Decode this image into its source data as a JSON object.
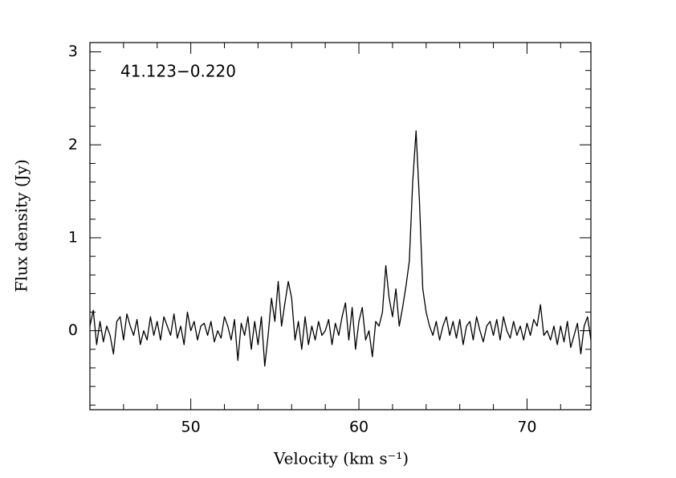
{
  "chart_data": {
    "type": "line",
    "title": "41.123−0.220",
    "xlabel": "Velocity (km s⁻¹)",
    "ylabel": "Flux density (Jy)",
    "xlim": [
      44,
      73.8
    ],
    "ylim": [
      -0.85,
      3.1
    ],
    "xticks": [
      50,
      60,
      70
    ],
    "yticks": [
      0,
      1,
      2,
      3
    ],
    "xminorticks": [
      46,
      48,
      52,
      54,
      56,
      58,
      62,
      64,
      66,
      68,
      72
    ],
    "yminorticks": [
      -0.8,
      -0.6,
      -0.4,
      -0.2,
      0.2,
      0.4,
      0.6,
      0.8,
      1.2,
      1.4,
      1.6,
      1.8,
      2.2,
      2.4,
      2.6,
      2.8
    ],
    "x": [
      44.0,
      44.2,
      44.4,
      44.6,
      44.8,
      45.0,
      45.2,
      45.4,
      45.6,
      45.8,
      46.0,
      46.2,
      46.4,
      46.6,
      46.8,
      47.0,
      47.2,
      47.4,
      47.6,
      47.8,
      48.0,
      48.2,
      48.4,
      48.6,
      48.8,
      49.0,
      49.2,
      49.4,
      49.6,
      49.8,
      50.0,
      50.2,
      50.4,
      50.6,
      50.8,
      51.0,
      51.2,
      51.4,
      51.6,
      51.8,
      52.0,
      52.2,
      52.4,
      52.6,
      52.8,
      53.0,
      53.2,
      53.4,
      53.6,
      53.8,
      54.0,
      54.2,
      54.4,
      54.6,
      54.8,
      55.0,
      55.2,
      55.4,
      55.6,
      55.8,
      56.0,
      56.2,
      56.4,
      56.6,
      56.8,
      57.0,
      57.2,
      57.4,
      57.6,
      57.8,
      58.0,
      58.2,
      58.4,
      58.6,
      58.8,
      59.0,
      59.2,
      59.4,
      59.6,
      59.8,
      60.0,
      60.2,
      60.4,
      60.6,
      60.8,
      61.0,
      61.2,
      61.4,
      61.6,
      61.8,
      62.0,
      62.2,
      62.4,
      62.6,
      62.8,
      63.0,
      63.2,
      63.4,
      63.6,
      63.8,
      64.0,
      64.2,
      64.4,
      64.6,
      64.8,
      65.0,
      65.2,
      65.4,
      65.6,
      65.8,
      66.0,
      66.2,
      66.4,
      66.6,
      66.8,
      67.0,
      67.2,
      67.4,
      67.6,
      67.8,
      68.0,
      68.2,
      68.4,
      68.6,
      68.8,
      69.0,
      69.2,
      69.4,
      69.6,
      69.8,
      70.0,
      70.2,
      70.4,
      70.6,
      70.8,
      71.0,
      71.2,
      71.4,
      71.6,
      71.8,
      72.0,
      72.2,
      72.4,
      72.6,
      72.8,
      73.0,
      73.2,
      73.4,
      73.6,
      73.8
    ],
    "series": [
      {
        "color": "#000000",
        "values": [
          0.05,
          0.22,
          -0.15,
          0.1,
          -0.12,
          0.05,
          -0.05,
          -0.25,
          0.1,
          0.15,
          -0.1,
          0.18,
          0.05,
          -0.05,
          0.12,
          -0.15,
          0.0,
          -0.1,
          0.15,
          -0.05,
          0.1,
          -0.1,
          0.15,
          0.05,
          -0.05,
          0.18,
          -0.08,
          0.05,
          -0.15,
          0.2,
          0.0,
          0.1,
          -0.1,
          0.05,
          0.08,
          -0.05,
          0.1,
          -0.12,
          0.0,
          -0.08,
          0.15,
          0.05,
          -0.1,
          0.12,
          -0.32,
          0.08,
          -0.05,
          0.15,
          -0.2,
          0.1,
          -0.15,
          0.15,
          -0.38,
          -0.05,
          0.35,
          0.1,
          0.53,
          0.05,
          0.3,
          0.53,
          0.35,
          -0.1,
          0.1,
          -0.2,
          0.15,
          -0.15,
          0.05,
          -0.1,
          0.1,
          -0.05,
          0.0,
          0.12,
          -0.15,
          0.08,
          -0.05,
          0.15,
          0.3,
          -0.1,
          0.25,
          -0.2,
          0.1,
          0.25,
          -0.1,
          0.0,
          -0.28,
          0.1,
          0.05,
          0.2,
          0.7,
          0.35,
          0.15,
          0.45,
          0.05,
          0.25,
          0.48,
          0.75,
          1.6,
          2.15,
          1.4,
          0.45,
          0.2,
          0.05,
          -0.05,
          0.1,
          -0.1,
          0.05,
          0.15,
          -0.05,
          0.1,
          -0.08,
          0.12,
          -0.15,
          0.05,
          0.1,
          -0.1,
          0.15,
          0.0,
          -0.12,
          0.05,
          0.1,
          -0.05,
          0.12,
          -0.1,
          0.15,
          0.0,
          -0.08,
          0.1,
          -0.05,
          0.05,
          -0.1,
          0.08,
          -0.05,
          0.12,
          0.05,
          0.28,
          -0.05,
          0.0,
          -0.1,
          0.05,
          -0.15,
          0.05,
          -0.12,
          0.1,
          -0.18,
          -0.05,
          0.08,
          -0.25,
          0.05,
          0.15,
          -0.1
        ]
      }
    ]
  }
}
